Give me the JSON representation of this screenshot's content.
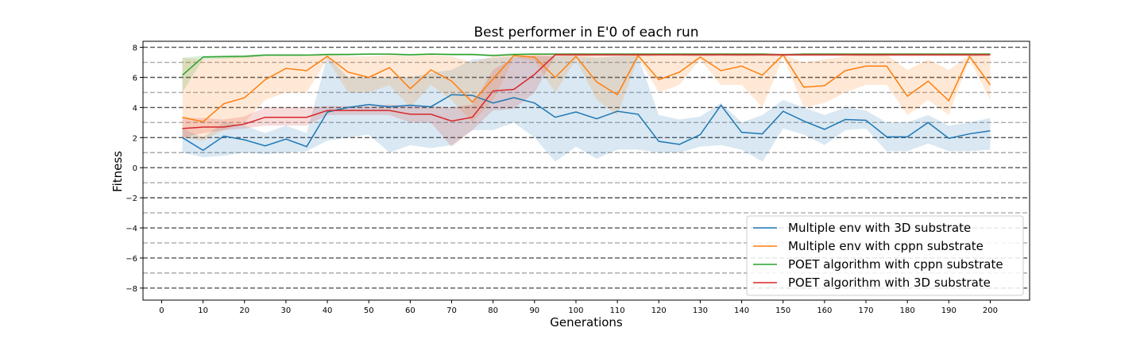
{
  "chart_data": {
    "type": "line",
    "title": "Best performer in E'0 of each run",
    "xlabel": "Generations",
    "ylabel": "Fitness",
    "xlim": [
      -4.5,
      209.5
    ],
    "ylim": [
      -8.8,
      8.4
    ],
    "xticks": [
      0,
      10,
      20,
      30,
      40,
      50,
      60,
      70,
      80,
      90,
      100,
      110,
      120,
      130,
      140,
      150,
      160,
      170,
      180,
      190,
      200
    ],
    "yticks": [
      -8,
      -6,
      -4,
      -2,
      0,
      2,
      4,
      6,
      8
    ],
    "grid": {
      "dark_dashed": [
        -8,
        -6,
        -4,
        -2,
        0,
        2,
        4,
        6,
        8
      ],
      "light_dashed": [
        -7,
        -5,
        -3,
        -1,
        1,
        3,
        5,
        7
      ]
    },
    "legend_position": "lower-right",
    "x": [
      5,
      10,
      15,
      20,
      25,
      30,
      35,
      40,
      45,
      50,
      55,
      60,
      65,
      70,
      75,
      80,
      85,
      90,
      95,
      100,
      105,
      110,
      115,
      120,
      125,
      130,
      135,
      140,
      145,
      150,
      155,
      160,
      165,
      170,
      175,
      180,
      185,
      190,
      195,
      200
    ],
    "series": [
      {
        "name": "Multiple env  with 3D substrate",
        "color": "#1f77b4",
        "values": [
          2.0,
          1.15,
          2.1,
          1.85,
          1.45,
          1.9,
          1.4,
          3.7,
          4.0,
          4.2,
          4.05,
          4.15,
          4.05,
          4.85,
          4.8,
          4.3,
          4.65,
          4.3,
          3.35,
          3.7,
          3.25,
          3.75,
          3.55,
          1.75,
          1.55,
          2.2,
          4.15,
          2.35,
          2.25,
          3.75,
          3.1,
          2.55,
          3.2,
          3.15,
          2.05,
          2.05,
          3.0,
          1.95,
          2.25,
          2.45
        ],
        "band_low": [
          1.0,
          0.7,
          0.8,
          1.0,
          0.9,
          1.0,
          1.1,
          1.8,
          2.0,
          2.2,
          1.0,
          1.5,
          1.3,
          1.5,
          2.5,
          2.5,
          3.0,
          2.0,
          0.4,
          1.4,
          0.6,
          1.2,
          1.2,
          1.0,
          1.0,
          1.4,
          1.5,
          1.2,
          0.4,
          2.6,
          2.2,
          1.5,
          2.5,
          2.6,
          1.1,
          1.1,
          1.6,
          1.1,
          1.1,
          1.2
        ],
        "band_high": [
          2.6,
          2.0,
          3.0,
          2.8,
          2.3,
          2.8,
          2.3,
          7.4,
          6.0,
          6.0,
          6.0,
          6.0,
          6.3,
          6.5,
          7.2,
          7.3,
          7.4,
          7.4,
          7.4,
          7.4,
          7.3,
          7.4,
          7.4,
          3.5,
          3.2,
          3.4,
          4.3,
          3.0,
          3.5,
          4.5,
          4.0,
          3.5,
          4.0,
          3.8,
          3.0,
          3.0,
          3.5,
          2.8,
          3.0,
          3.3
        ]
      },
      {
        "name": "Multiple env  with cppn substrate",
        "color": "#ff7f0e",
        "values": [
          3.35,
          3.05,
          4.25,
          4.65,
          5.85,
          6.6,
          6.45,
          7.4,
          6.35,
          6.0,
          6.65,
          5.25,
          6.5,
          5.75,
          4.35,
          5.9,
          7.45,
          7.35,
          6.0,
          7.4,
          5.7,
          4.85,
          7.45,
          5.85,
          6.35,
          7.35,
          6.45,
          6.75,
          6.15,
          7.5,
          5.35,
          5.45,
          6.45,
          6.75,
          6.75,
          4.75,
          5.75,
          4.45,
          7.4,
          5.5
        ],
        "band_low": [
          2.0,
          1.8,
          2.5,
          3.0,
          4.5,
          5.0,
          5.0,
          7.2,
          5.0,
          5.0,
          5.5,
          4.0,
          5.5,
          4.5,
          3.0,
          4.5,
          7.3,
          7.1,
          5.0,
          7.2,
          4.5,
          3.5,
          7.3,
          5.0,
          5.5,
          7.2,
          5.5,
          5.5,
          4.0,
          7.4,
          4.0,
          4.3,
          5.0,
          5.5,
          5.5,
          3.5,
          4.5,
          3.5,
          7.2,
          4.5
        ],
        "band_high": [
          7.3,
          7.2,
          7.3,
          7.4,
          7.4,
          7.4,
          7.4,
          7.5,
          7.4,
          7.4,
          7.5,
          7.4,
          7.5,
          7.4,
          7.0,
          7.4,
          7.5,
          7.5,
          7.4,
          7.5,
          7.4,
          7.4,
          7.5,
          7.4,
          7.4,
          7.5,
          7.4,
          7.5,
          7.4,
          7.5,
          7.0,
          7.2,
          7.4,
          7.5,
          7.5,
          6.5,
          7.2,
          6.5,
          7.5,
          7.4
        ]
      },
      {
        "name": "POET algorithm with cppn substrate",
        "color": "#2ca02c",
        "values": [
          6.15,
          7.35,
          7.38,
          7.4,
          7.48,
          7.48,
          7.48,
          7.52,
          7.52,
          7.55,
          7.55,
          7.5,
          7.55,
          7.52,
          7.52,
          7.45,
          7.52,
          7.55,
          7.55,
          7.55,
          7.55,
          7.55,
          7.55,
          7.55,
          7.55,
          7.55,
          7.55,
          7.55,
          7.55,
          7.5,
          7.55,
          7.55,
          7.55,
          7.55,
          7.55,
          7.55,
          7.55,
          7.55,
          7.55,
          7.55
        ],
        "band_low": [
          5.0,
          7.2,
          7.25,
          7.3,
          7.4,
          7.4,
          7.4,
          7.45,
          7.45,
          7.5,
          7.5,
          7.42,
          7.5,
          7.45,
          7.45,
          7.4,
          7.45,
          7.5,
          7.5,
          7.5,
          7.5,
          7.5,
          7.5,
          7.5,
          7.5,
          7.5,
          7.5,
          7.5,
          7.5,
          7.45,
          7.5,
          7.5,
          7.5,
          7.5,
          7.5,
          7.5,
          7.5,
          7.5,
          7.5,
          7.5
        ],
        "band_high": [
          7.3,
          7.45,
          7.48,
          7.5,
          7.55,
          7.55,
          7.55,
          7.6,
          7.6,
          7.6,
          7.6,
          7.58,
          7.6,
          7.6,
          7.6,
          7.55,
          7.6,
          7.6,
          7.6,
          7.6,
          7.6,
          7.6,
          7.6,
          7.6,
          7.6,
          7.6,
          7.6,
          7.6,
          7.6,
          7.55,
          7.6,
          7.6,
          7.6,
          7.6,
          7.6,
          7.6,
          7.6,
          7.6,
          7.6,
          7.6
        ]
      },
      {
        "name": "POET algorithm with 3D substrate",
        "color": "#d62728",
        "values": [
          2.6,
          2.7,
          2.7,
          2.9,
          3.35,
          3.35,
          3.35,
          3.8,
          3.8,
          3.8,
          3.8,
          3.55,
          3.55,
          3.1,
          3.35,
          5.1,
          5.2,
          6.2,
          7.5,
          7.5,
          7.5,
          7.5,
          7.5,
          7.5,
          7.5,
          7.5,
          7.5,
          7.5,
          7.5,
          7.5,
          7.5,
          7.5,
          7.5,
          7.5,
          7.5,
          7.5,
          7.5,
          7.5,
          7.5,
          7.5
        ],
        "band_low": [
          2.0,
          2.3,
          2.5,
          2.6,
          2.8,
          2.8,
          2.8,
          3.5,
          3.5,
          3.5,
          3.5,
          3.0,
          3.0,
          1.4,
          2.5,
          3.8,
          3.9,
          5.0,
          7.4,
          7.4,
          7.4,
          7.4,
          7.4,
          7.4,
          7.4,
          7.4,
          7.4,
          7.4,
          7.4,
          7.4,
          7.4,
          7.4,
          7.4,
          7.4,
          7.4,
          7.4,
          7.4,
          7.4,
          7.4,
          7.4
        ],
        "band_high": [
          3.3,
          3.3,
          3.2,
          3.4,
          4.0,
          4.0,
          4.0,
          4.1,
          4.1,
          4.1,
          4.2,
          4.1,
          4.1,
          4.0,
          4.2,
          6.5,
          7.3,
          7.5,
          7.6,
          7.6,
          7.6,
          7.6,
          7.6,
          7.6,
          7.6,
          7.6,
          7.6,
          7.6,
          7.6,
          7.6,
          7.6,
          7.6,
          7.6,
          7.6,
          7.6,
          7.6,
          7.6,
          7.6,
          7.6,
          7.6
        ]
      }
    ]
  }
}
